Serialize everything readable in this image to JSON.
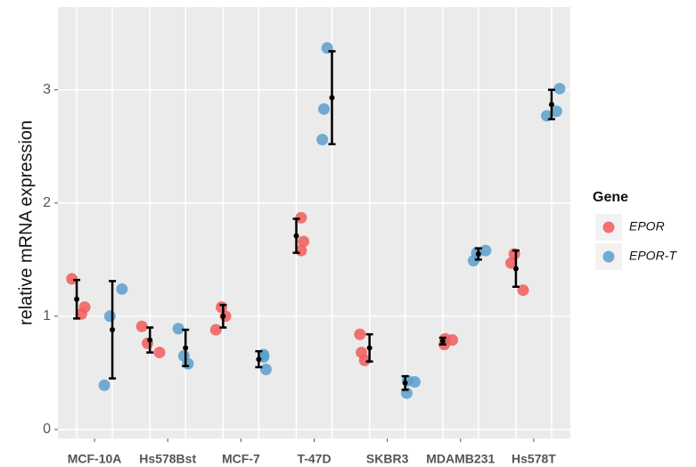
{
  "chart_data": {
    "type": "dotplot",
    "y_label": "relative mRNA expression",
    "categories": [
      "MCF-10A",
      "Hs578Bst",
      "MCF-7",
      "T-47D",
      "SKBR3",
      "MDAMB231",
      "Hs578T"
    ],
    "ylim": [
      -0.08,
      3.73
    ],
    "yticks": [
      0,
      1,
      2,
      3
    ],
    "grid": true,
    "legend_title": "Gene",
    "legend_position": "right",
    "series": [
      {
        "name": "EPOR",
        "color": "#f25c5c",
        "values": [
          1.15,
          0.79,
          1.0,
          1.71,
          0.72,
          0.78,
          1.42
        ],
        "errors": [
          0.17,
          0.11,
          0.1,
          0.15,
          0.12,
          0.03,
          0.16
        ],
        "points": [
          [
            1.08,
            1.33,
            1.02
          ],
          [
            0.76,
            0.68,
            0.91
          ],
          [
            0.88,
            1.08,
            1.0
          ],
          [
            1.58,
            1.87,
            1.66
          ],
          [
            0.84,
            0.68,
            0.61
          ],
          [
            0.75,
            0.8,
            0.79
          ],
          [
            1.47,
            1.23,
            1.55
          ]
        ]
      },
      {
        "name": "EPOR-T",
        "color": "#5b9fcc",
        "values": [
          0.88,
          0.72,
          0.62,
          2.93,
          0.41,
          1.55,
          2.87
        ],
        "errors": [
          0.43,
          0.16,
          0.07,
          0.41,
          0.06,
          0.05,
          0.13
        ],
        "points": [
          [
            1.0,
            1.24,
            0.39
          ],
          [
            0.89,
            0.65,
            0.58
          ],
          [
            0.64,
            0.66,
            0.53
          ],
          [
            2.56,
            2.83,
            3.37
          ],
          [
            0.32,
            0.43,
            0.42
          ],
          [
            1.49,
            1.58,
            1.56
          ],
          [
            3.01,
            2.77,
            2.81
          ]
        ]
      }
    ]
  }
}
